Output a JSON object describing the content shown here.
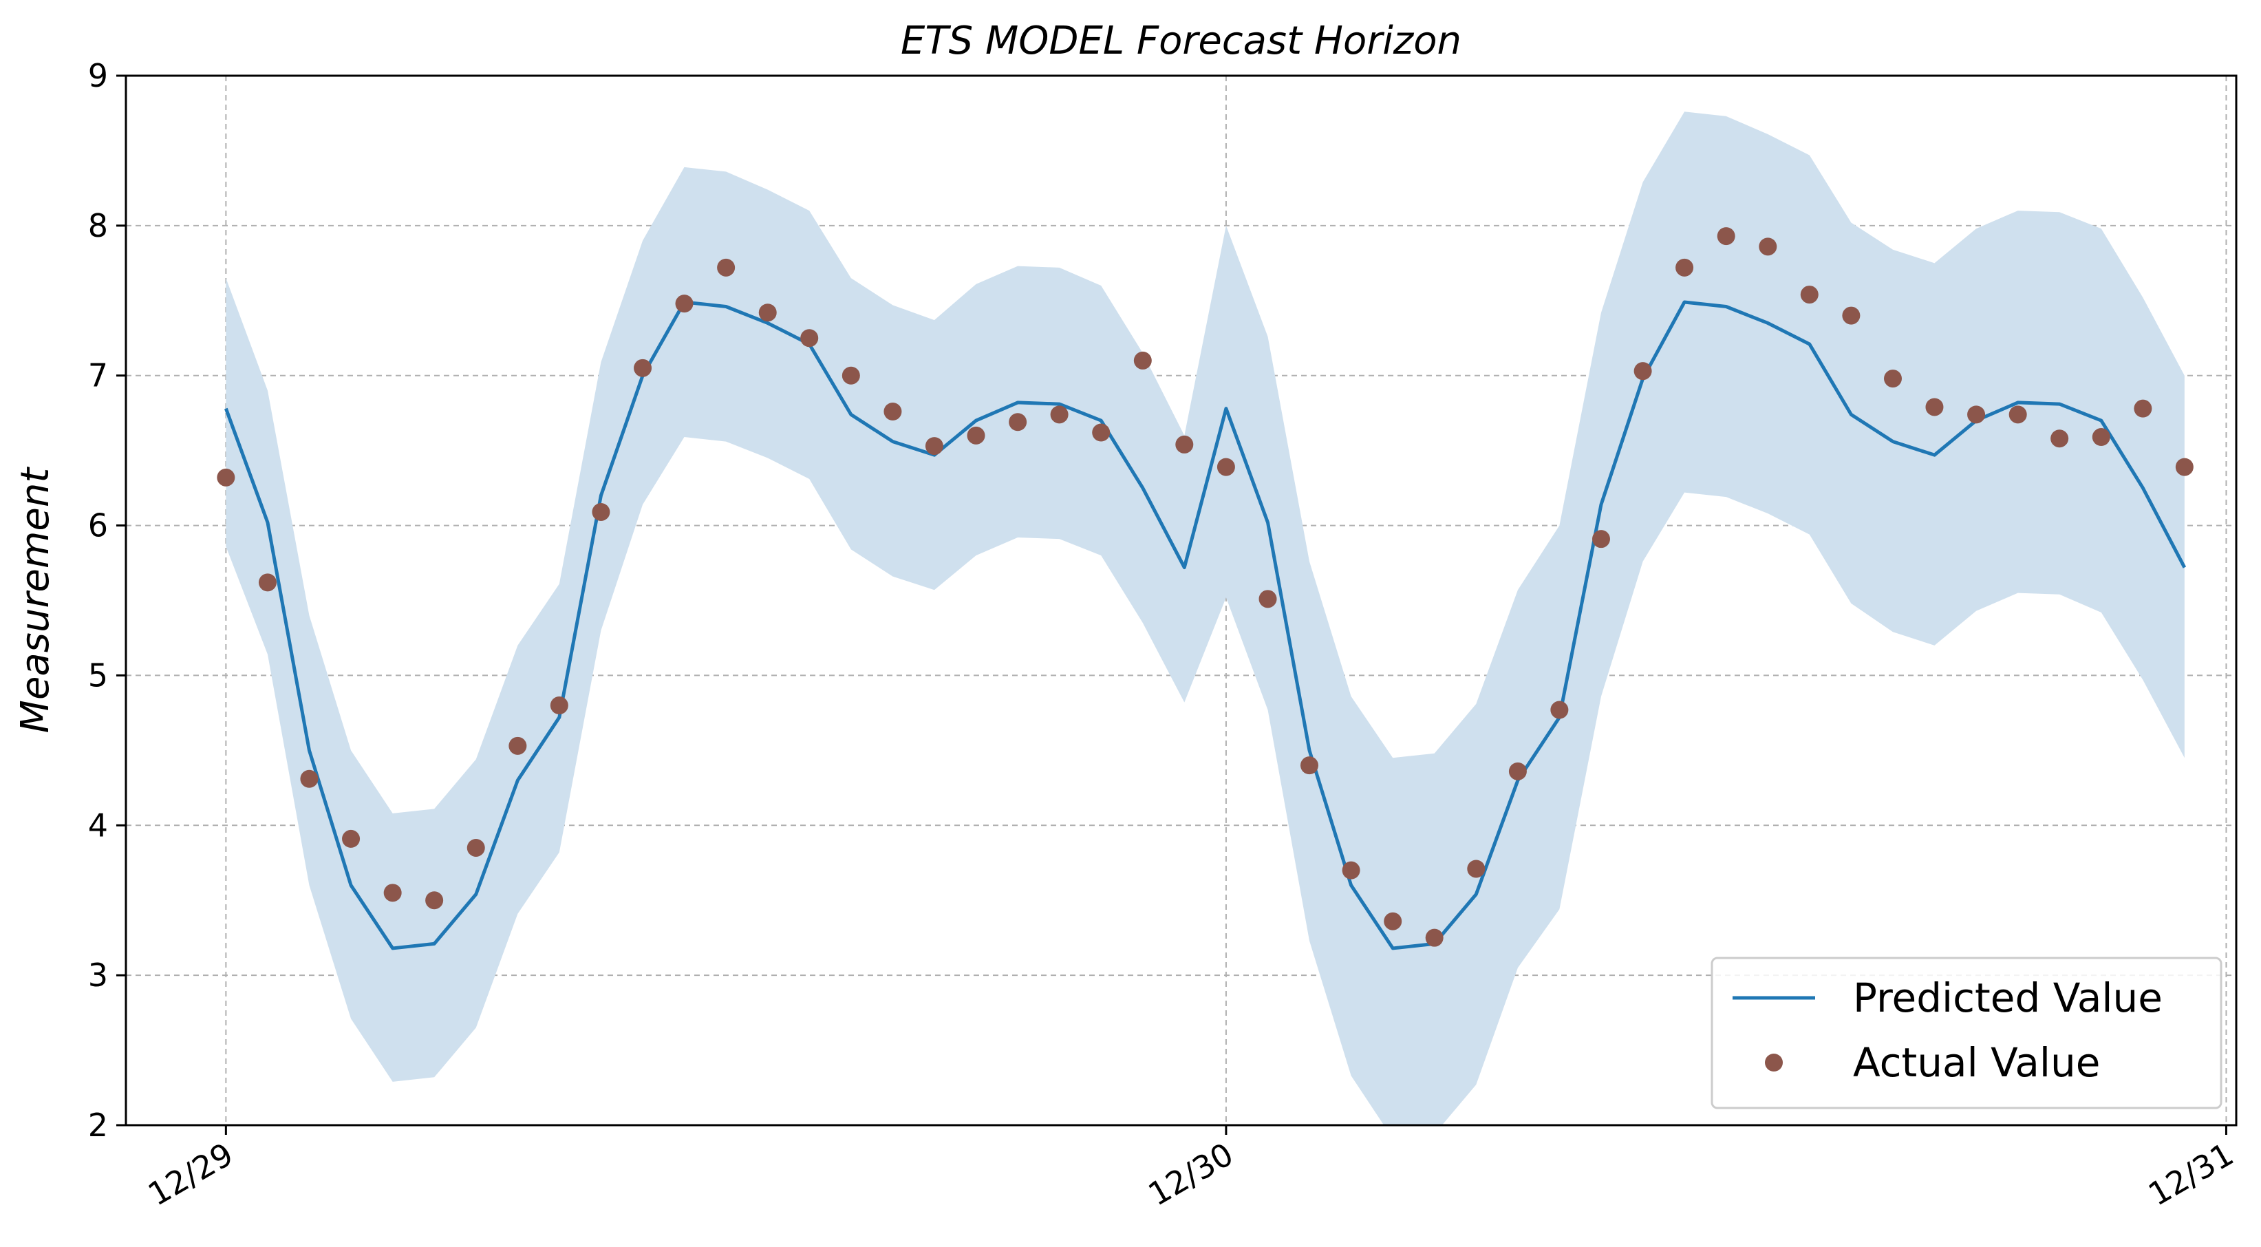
{
  "chart_data": {
    "type": "line",
    "title": "ETS MODEL Forecast Horizon",
    "xlabel": "",
    "ylabel": "Measurement",
    "ylim": [
      2,
      9
    ],
    "xlim": [
      -0.1,
      2.01
    ],
    "yticks": [
      2,
      3,
      4,
      5,
      6,
      7,
      8,
      9
    ],
    "xticks": [
      {
        "value": 0,
        "label": "12/29"
      },
      {
        "value": 1,
        "label": "12/30"
      },
      {
        "value": 2,
        "label": "12/31"
      }
    ],
    "grid": true,
    "legend_position": "bottom-right",
    "colors": {
      "predicted": "#1f77b4",
      "actual": "#8c564b",
      "band": "#cfe0ee"
    },
    "series": [
      {
        "name": "Predicted Value",
        "kind": "line",
        "x": [
          0,
          0.0417,
          0.0833,
          0.125,
          0.1667,
          0.2083,
          0.25,
          0.2917,
          0.3333,
          0.375,
          0.4167,
          0.4583,
          0.5,
          0.5417,
          0.5833,
          0.625,
          0.6667,
          0.7083,
          0.75,
          0.7917,
          0.8333,
          0.875,
          0.9167,
          0.9583,
          1.0,
          1.0417,
          1.0833,
          1.125,
          1.1667,
          1.2083,
          1.25,
          1.2917,
          1.3333,
          1.375,
          1.4167,
          1.4583,
          1.5,
          1.5417,
          1.5833,
          1.625,
          1.6667,
          1.7083,
          1.75,
          1.7917,
          1.8333,
          1.875,
          1.9167,
          1.9583
        ],
        "values": [
          6.78,
          6.02,
          4.5,
          3.6,
          3.18,
          3.21,
          3.54,
          4.3,
          4.72,
          6.2,
          7.0,
          7.49,
          7.46,
          7.35,
          7.21,
          6.74,
          6.56,
          6.47,
          6.7,
          6.82,
          6.81,
          6.7,
          6.25,
          5.72,
          6.78,
          6.02,
          4.5,
          3.6,
          3.18,
          3.21,
          3.54,
          4.3,
          4.72,
          6.14,
          6.98,
          7.49,
          7.46,
          7.35,
          7.21,
          6.74,
          6.56,
          6.47,
          6.7,
          6.82,
          6.81,
          6.7,
          6.25,
          5.72
        ]
      },
      {
        "name": "Actual Value",
        "kind": "scatter",
        "x": [
          0,
          0.0417,
          0.0833,
          0.125,
          0.1667,
          0.2083,
          0.25,
          0.2917,
          0.3333,
          0.375,
          0.4167,
          0.4583,
          0.5,
          0.5417,
          0.5833,
          0.625,
          0.6667,
          0.7083,
          0.75,
          0.7917,
          0.8333,
          0.875,
          0.9167,
          0.9583,
          1.0,
          1.0417,
          1.0833,
          1.125,
          1.1667,
          1.2083,
          1.25,
          1.2917,
          1.3333,
          1.375,
          1.4167,
          1.4583,
          1.5,
          1.5417,
          1.5833,
          1.625,
          1.6667,
          1.7083,
          1.75,
          1.7917,
          1.8333,
          1.875,
          1.9167,
          1.9583
        ],
        "values": [
          6.32,
          5.62,
          4.31,
          3.91,
          3.55,
          3.5,
          3.85,
          4.53,
          4.8,
          6.09,
          7.05,
          7.48,
          7.72,
          7.42,
          7.25,
          7.0,
          6.76,
          6.53,
          6.6,
          6.69,
          6.74,
          6.62,
          7.1,
          6.54,
          6.39,
          5.51,
          4.4,
          3.7,
          3.36,
          3.25,
          3.71,
          4.36,
          4.77,
          5.91,
          7.03,
          7.72,
          7.93,
          7.86,
          7.54,
          7.4,
          6.98,
          6.79,
          6.74,
          6.74,
          6.58,
          6.59,
          6.78,
          6.39
        ]
      }
    ],
    "confidence_band": {
      "name": "Prediction interval",
      "upper": [
        7.65,
        6.9,
        5.4,
        4.5,
        4.08,
        4.11,
        4.44,
        5.2,
        5.61,
        7.09,
        7.9,
        8.39,
        8.36,
        8.24,
        8.1,
        7.65,
        7.47,
        7.37,
        7.61,
        7.73,
        7.72,
        7.6,
        7.15,
        6.6,
        8.0,
        7.26,
        5.76,
        4.86,
        4.45,
        4.48,
        4.81,
        5.57,
        6.0,
        7.42,
        8.29,
        8.76,
        8.73,
        8.61,
        8.47,
        8.02,
        7.84,
        7.75,
        7.98,
        8.1,
        8.09,
        7.98,
        7.52,
        7.0
      ],
      "lower": [
        5.86,
        5.14,
        3.6,
        2.71,
        2.29,
        2.32,
        2.65,
        3.41,
        3.82,
        5.3,
        6.14,
        6.59,
        6.56,
        6.45,
        6.31,
        5.84,
        5.66,
        5.57,
        5.8,
        5.92,
        5.91,
        5.8,
        5.35,
        4.82,
        5.52,
        4.77,
        3.23,
        2.33,
        1.91,
        1.94,
        2.27,
        3.05,
        3.44,
        4.86,
        5.76,
        6.22,
        6.19,
        6.08,
        5.94,
        5.48,
        5.29,
        5.2,
        5.43,
        5.55,
        5.54,
        5.42,
        4.97,
        4.45
      ]
    }
  }
}
